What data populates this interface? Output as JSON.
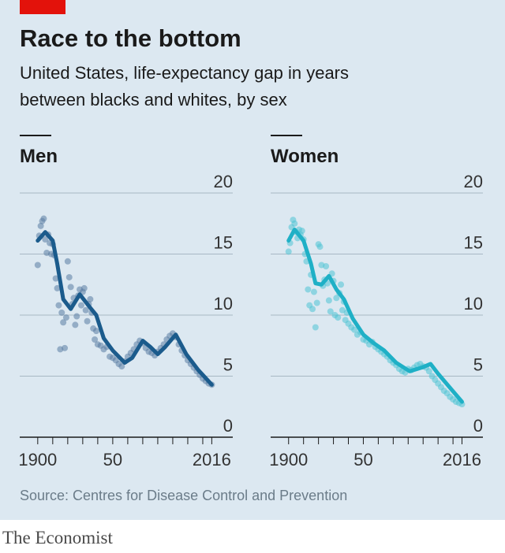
{
  "title": "Race to the bottom",
  "subtitle": [
    "United States, life-expectancy gap in years",
    "between blacks and whites, by sex"
  ],
  "source": "Source: Centres for Disease Control and Prevention",
  "brand": "The Economist",
  "chart_data": [
    {
      "type": "line",
      "title": "Men",
      "xlim": [
        1888,
        2030
      ],
      "ylim": [
        0,
        20
      ],
      "xticks": [
        1900,
        {
          "value": 1950,
          "label": "50"
        },
        2016
      ],
      "xminorticks": [
        1910,
        1920,
        1930,
        1940,
        1960,
        1970,
        1980,
        1990,
        2000,
        2010
      ],
      "yticks": [
        0,
        5,
        10,
        15,
        20
      ],
      "grid": true,
      "series": [
        {
          "type": "scatter",
          "color": "#5a7ba3",
          "x": [
            1900,
            1901,
            1902,
            1903,
            1904,
            1905,
            1906,
            1907,
            1908,
            1909,
            1910,
            1911,
            1912,
            1913,
            1914,
            1915,
            1916,
            1917,
            1918,
            1919,
            1920,
            1921,
            1922,
            1923,
            1924,
            1925,
            1926,
            1927,
            1928,
            1929,
            1930,
            1931,
            1932,
            1933,
            1934,
            1935,
            1936,
            1937,
            1938,
            1939,
            1940,
            1942,
            1944,
            1946,
            1948,
            1950,
            1952,
            1954,
            1956,
            1958,
            1960,
            1962,
            1964,
            1966,
            1968,
            1970,
            1972,
            1974,
            1976,
            1978,
            1980,
            1982,
            1984,
            1986,
            1988,
            1990,
            1992,
            1994,
            1996,
            1998,
            2000,
            2002,
            2004,
            2006,
            2008,
            2010,
            2012,
            2014,
            2016
          ],
          "values": [
            14.1,
            16.5,
            17.3,
            17.7,
            17.9,
            16.2,
            15.1,
            16.6,
            15.9,
            15.0,
            15.8,
            14.9,
            13.0,
            12.2,
            10.8,
            7.2,
            10.2,
            9.4,
            7.3,
            9.8,
            14.4,
            13.1,
            12.3,
            10.9,
            11.4,
            9.2,
            9.9,
            11.6,
            12.1,
            10.8,
            11.9,
            12.2,
            10.4,
            9.5,
            10.9,
            11.3,
            10.2,
            8.9,
            8.0,
            8.7,
            7.6,
            7.5,
            7.2,
            7.4,
            6.6,
            6.5,
            6.3,
            6.0,
            5.8,
            6.2,
            6.6,
            6.9,
            7.2,
            7.6,
            7.9,
            7.7,
            7.3,
            7.0,
            6.9,
            6.7,
            7.0,
            7.3,
            7.6,
            8.0,
            8.3,
            8.5,
            8.2,
            7.6,
            7.1,
            6.7,
            6.3,
            6.0,
            5.7,
            5.4,
            5.1,
            4.8,
            4.6,
            4.4,
            4.3
          ]
        },
        {
          "type": "line",
          "color": "#1b5b8c",
          "x": [
            1900,
            1905,
            1910,
            1913,
            1917,
            1922,
            1928,
            1935,
            1939,
            1944,
            1950,
            1958,
            1963,
            1970,
            1975,
            1980,
            1985,
            1992,
            1999,
            2007,
            2016
          ],
          "values": [
            16.1,
            16.8,
            16.1,
            14.2,
            11.3,
            10.5,
            11.7,
            10.6,
            10.0,
            8.1,
            7.1,
            6.1,
            6.5,
            7.9,
            7.4,
            6.8,
            7.4,
            8.4,
            6.8,
            5.5,
            4.3
          ]
        }
      ]
    },
    {
      "type": "line",
      "title": "Women",
      "xlim": [
        1888,
        2030
      ],
      "ylim": [
        0,
        20
      ],
      "xticks": [
        1900,
        {
          "value": 1950,
          "label": "50"
        },
        2016
      ],
      "xminorticks": [
        1910,
        1920,
        1930,
        1940,
        1960,
        1970,
        1980,
        1990,
        2000,
        2010
      ],
      "yticks": [
        0,
        5,
        10,
        15,
        20
      ],
      "grid": true,
      "series": [
        {
          "type": "scatter",
          "color": "#4ec3d4",
          "x": [
            1900,
            1901,
            1902,
            1903,
            1904,
            1905,
            1906,
            1907,
            1908,
            1909,
            1910,
            1911,
            1912,
            1913,
            1914,
            1915,
            1916,
            1917,
            1918,
            1919,
            1920,
            1921,
            1922,
            1923,
            1924,
            1925,
            1926,
            1927,
            1928,
            1929,
            1930,
            1931,
            1932,
            1933,
            1934,
            1935,
            1936,
            1937,
            1938,
            1939,
            1940,
            1942,
            1944,
            1946,
            1948,
            1950,
            1952,
            1954,
            1956,
            1958,
            1960,
            1962,
            1964,
            1966,
            1968,
            1970,
            1972,
            1974,
            1976,
            1978,
            1980,
            1982,
            1984,
            1986,
            1988,
            1990,
            1992,
            1994,
            1996,
            1998,
            2000,
            2002,
            2004,
            2006,
            2008,
            2010,
            2012,
            2014,
            2016
          ],
          "values": [
            15.2,
            15.9,
            17.2,
            17.8,
            17.5,
            16.8,
            16.3,
            17.0,
            16.6,
            16.9,
            16.2,
            15.0,
            14.4,
            12.1,
            10.8,
            13.3,
            10.5,
            11.9,
            9.0,
            11.0,
            15.8,
            15.6,
            14.1,
            12.4,
            12.9,
            14.0,
            12.6,
            11.2,
            10.3,
            13.4,
            12.8,
            10.0,
            11.4,
            9.8,
            11.8,
            12.5,
            10.4,
            11.1,
            9.6,
            10.2,
            9.3,
            9.0,
            8.8,
            8.4,
            8.6,
            8.0,
            7.9,
            7.6,
            7.8,
            7.4,
            7.2,
            7.0,
            6.8,
            6.6,
            6.3,
            6.1,
            5.9,
            5.6,
            5.4,
            5.3,
            5.6,
            5.5,
            5.7,
            5.9,
            6.0,
            5.8,
            5.7,
            5.4,
            5.0,
            4.7,
            4.4,
            4.1,
            3.8,
            3.6,
            3.3,
            3.1,
            2.9,
            2.8,
            2.7
          ]
        },
        {
          "type": "line",
          "color": "#1fb0c6",
          "x": [
            1900,
            1904,
            1910,
            1915,
            1918,
            1922,
            1927,
            1932,
            1937,
            1943,
            1950,
            1957,
            1964,
            1972,
            1981,
            1989,
            1995,
            2000,
            2009,
            2016
          ],
          "values": [
            16.1,
            17.0,
            16.1,
            14.2,
            12.6,
            12.5,
            13.2,
            12.1,
            11.3,
            9.7,
            8.4,
            7.7,
            7.1,
            6.1,
            5.4,
            5.7,
            6.0,
            5.2,
            3.9,
            2.9
          ]
        }
      ]
    }
  ]
}
